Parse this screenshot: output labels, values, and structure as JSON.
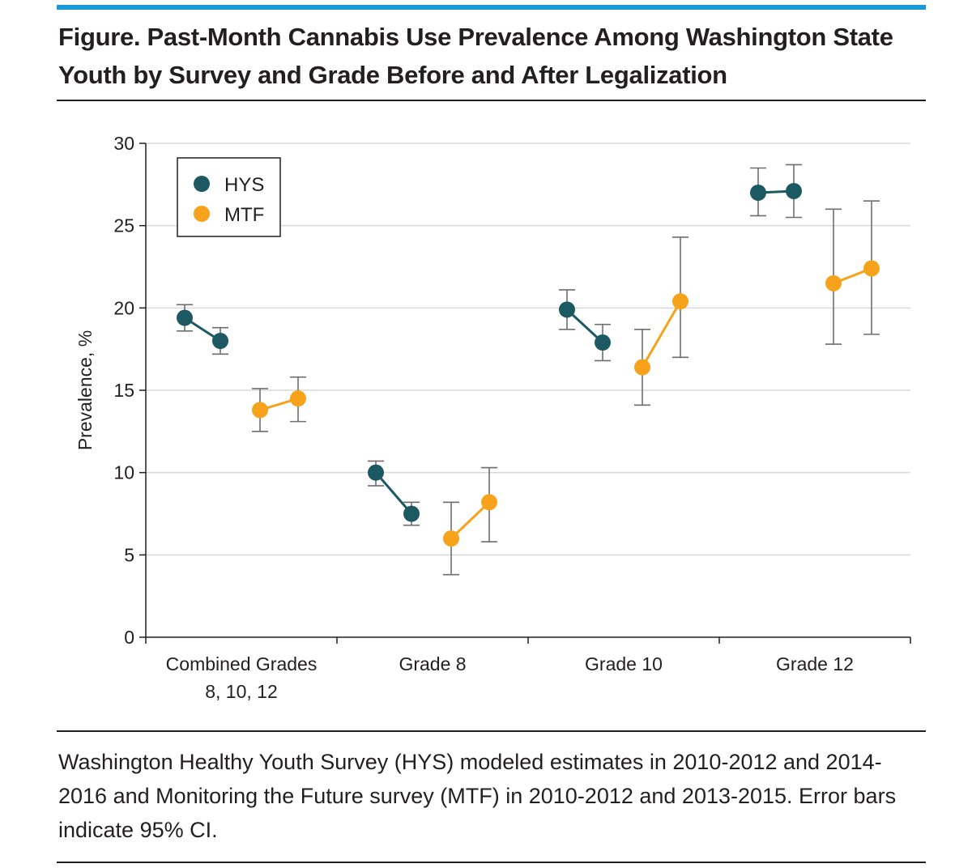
{
  "figure": {
    "title": "Figure. Past-Month Cannabis Use Prevalence Among Washington State Youth by Survey and Grade Before and After Legalization",
    "caption": "Washington Healthy Youth Survey (HYS) modeled estimates in 2010-2012 and 2014-2016 and Monitoring the Future survey (MTF) in 2010-2012 and 2013-2015. Error bars indicate 95% CI.",
    "colors": {
      "accent_rule": "#1a9ad6",
      "hys": "#1d5962",
      "mtf": "#f7a21b",
      "grid": "#d9d9d9",
      "axis": "#231f20"
    }
  },
  "chart_data": {
    "type": "scatter",
    "title": "",
    "xlabel": "",
    "ylabel": "Prevalence, %",
    "ylim": [
      0,
      30
    ],
    "yticks": [
      0,
      5,
      10,
      15,
      20,
      25,
      30
    ],
    "grid": true,
    "legend_position": "top-left",
    "categories": [
      [
        "Combined Grades",
        "8, 10, 12"
      ],
      [
        "Grade 8"
      ],
      [
        "Grade 10"
      ],
      [
        "Grade 12"
      ]
    ],
    "series": [
      {
        "name": "HYS",
        "color": "#1d5962",
        "periods": [
          "2010-2012",
          "2014-2016"
        ],
        "values": [
          [
            19.4,
            18.0
          ],
          [
            10.0,
            7.5
          ],
          [
            19.9,
            17.9
          ],
          [
            27.0,
            27.1
          ]
        ],
        "ci_low": [
          [
            18.6,
            17.2
          ],
          [
            9.2,
            6.8
          ],
          [
            18.7,
            16.8
          ],
          [
            25.6,
            25.5
          ]
        ],
        "ci_high": [
          [
            20.2,
            18.8
          ],
          [
            10.7,
            8.2
          ],
          [
            21.1,
            19.0
          ],
          [
            28.5,
            28.7
          ]
        ]
      },
      {
        "name": "MTF",
        "color": "#f7a21b",
        "periods": [
          "2010-2012",
          "2013-2015"
        ],
        "values": [
          [
            13.8,
            14.5
          ],
          [
            6.0,
            8.2
          ],
          [
            16.4,
            20.4
          ],
          [
            21.5,
            22.4
          ]
        ],
        "ci_low": [
          [
            12.5,
            13.1
          ],
          [
            3.8,
            5.8
          ],
          [
            14.1,
            17.0
          ],
          [
            17.8,
            18.4
          ]
        ],
        "ci_high": [
          [
            15.1,
            15.8
          ],
          [
            8.2,
            10.3
          ],
          [
            18.7,
            24.3
          ],
          [
            26.0,
            26.5
          ]
        ]
      }
    ]
  }
}
